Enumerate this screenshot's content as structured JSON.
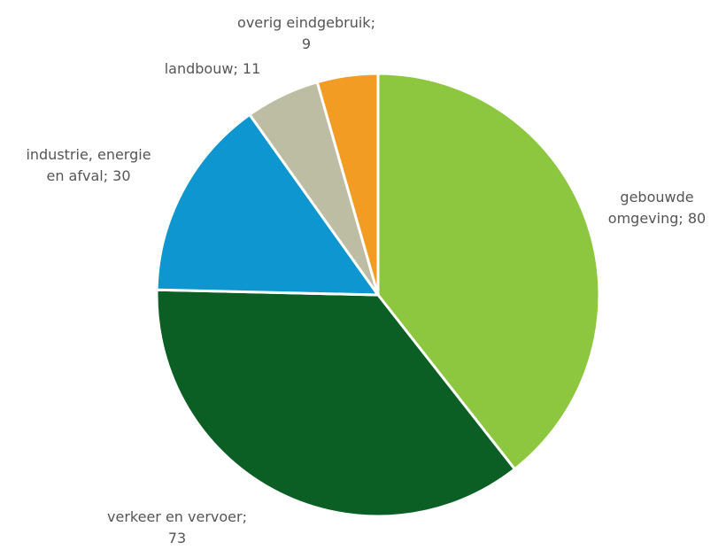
{
  "chart_data": {
    "type": "pie",
    "title": "",
    "start_angle_deg": 0,
    "direction": "clockwise",
    "legend": "none",
    "slices": [
      {
        "category": "gebouwde omgeving",
        "value": 80,
        "label_lines": [
          "gebouwde",
          "omgeving; 80"
        ],
        "color": "#8DC63F"
      },
      {
        "category": "verkeer en vervoer",
        "value": 73,
        "label_lines": [
          "verkeer en vervoer;",
          "73"
        ],
        "color": "#0B5E24"
      },
      {
        "category": "industrie, energie en afval",
        "value": 30,
        "label_lines": [
          "industrie, energie",
          "en afval; 30"
        ],
        "color": "#0D96D0"
      },
      {
        "category": "landbouw",
        "value": 11,
        "label_lines": [
          "landbouw; 11"
        ],
        "color": "#BDBDA3"
      },
      {
        "category": "overig eindgebruik",
        "value": 9,
        "label_lines": [
          "overig eindgebruik;",
          "9"
        ],
        "color": "#F39C23"
      }
    ]
  }
}
